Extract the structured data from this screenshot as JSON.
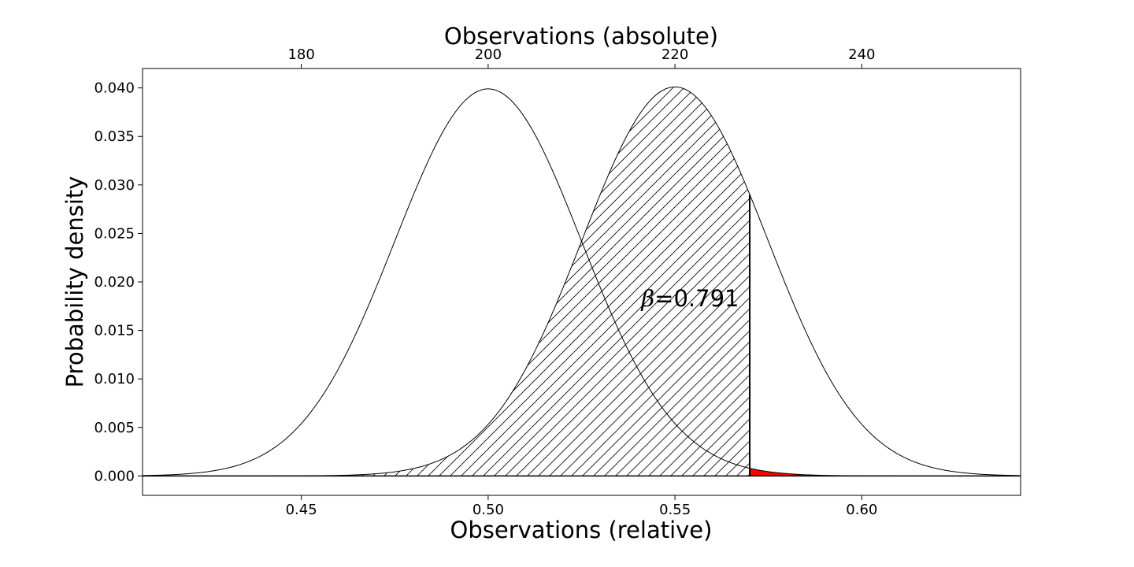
{
  "chart_data": {
    "type": "area",
    "xlabel": "Observations (relative)",
    "ylabel": "Probability density",
    "top_xlabel": "Observations (absolute)",
    "xlim": [
      0.4075,
      0.6425
    ],
    "ylim": [
      -0.002,
      0.042
    ],
    "x_ticks": [
      0.45,
      0.5,
      0.55,
      0.6
    ],
    "x_tick_labels": [
      "0.45",
      "0.50",
      "0.55",
      "0.60"
    ],
    "top_ticks": [
      180,
      200,
      220,
      240
    ],
    "top_tick_labels": [
      "180",
      "200",
      "220",
      "240"
    ],
    "top_axis_scale": 400,
    "y_ticks": [
      0.0,
      0.005,
      0.01,
      0.015,
      0.02,
      0.025,
      0.03,
      0.035,
      0.04
    ],
    "y_tick_labels": [
      "0.000",
      "0.005",
      "0.010",
      "0.015",
      "0.020",
      "0.025",
      "0.030",
      "0.035",
      "0.040"
    ],
    "grid": false,
    "series": [
      {
        "mean": 0.5,
        "sd": 0.025,
        "peak_density": 0.0399,
        "fill": "none"
      },
      {
        "mean": 0.55,
        "sd": 0.02487,
        "peak_density": 0.0401,
        "fill": "hatch",
        "fill_upper": 0.57
      }
    ],
    "critical_value": 0.57,
    "alpha_region": {
      "from": 0.57,
      "color": "#ff0000"
    },
    "annotation": {
      "symbol": "β",
      "text": "=0.791",
      "x": 0.541,
      "y": 0.0175
    }
  }
}
